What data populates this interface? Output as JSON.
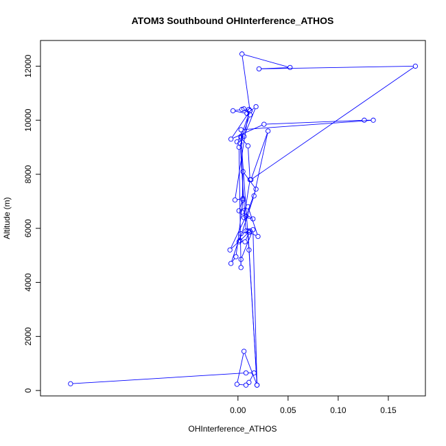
{
  "chart_data": {
    "type": "line",
    "title": "ATOM3 Southbound OHInterference_ATHOS",
    "xlabel": "OHInterference_ATHOS",
    "ylabel": "Altitude (m)",
    "xlim": [
      -0.197,
      0.187
    ],
    "ylim": [
      -200,
      12950
    ],
    "xticks": [
      0.0,
      0.05,
      0.1,
      0.15
    ],
    "xtick_labels": [
      "0.00",
      "0.05",
      "0.10",
      "0.15"
    ],
    "yticks": [
      0,
      2000,
      4000,
      6000,
      8000,
      10000,
      12000
    ],
    "ytick_labels": [
      "0",
      "2000",
      "4000",
      "6000",
      "8000",
      "10000",
      "12000"
    ],
    "grid": false,
    "line_color": "#0000ff",
    "marker": "open-circle",
    "series": [
      {
        "x": [
          -0.167,
          0.008,
          0.016,
          0.011,
          0.008,
          -0.001,
          0.006,
          0.019,
          0.011,
          0.003,
          0.01,
          0.012,
          0.006,
          0.015,
          0.004,
          0.005,
          0.018,
          0.008,
          -0.008,
          0.002,
          0.007,
          0.011,
          0.02,
          0.01,
          0.001,
          0.005,
          -0.003,
          0.011,
          0.006,
          0.012,
          0.002,
          0.008,
          0.01,
          0.019,
          0.015,
          0.003,
          0.003,
          0.001,
          0.006,
          0.018,
          0.009,
          -0.005,
          0.004,
          0.012,
          -0.007,
          0.026,
          0.126,
          0.135,
          0.003,
          0.005,
          -0.002,
          -0.007,
          0.003,
          0.012,
          0.001,
          0.016,
          0.03,
          0.013,
          0.177,
          0.021,
          0.052,
          0.004,
          0.012,
          0.003,
          -0.001
        ],
        "y": [
          250,
          650,
          650,
          300,
          200,
          230,
          1450,
          200,
          5200,
          9350,
          9050,
          7800,
          6400,
          6350,
          6600,
          8100,
          7450,
          6450,
          5200,
          5550,
          5500,
          5850,
          5700,
          6800,
          6650,
          7100,
          7050,
          10400,
          10420,
          10200,
          9150,
          5900,
          5900,
          200,
          5950,
          4850,
          4550,
          9000,
          9400,
          10500,
          10250,
          10350,
          10400,
          10350,
          9300,
          9850,
          10000,
          10000,
          9650,
          7050,
          4950,
          4700,
          5800,
          5900,
          5500,
          7200,
          9600,
          7800,
          12000,
          11900,
          11950,
          12450,
          10350,
          9400,
          9200
        ]
      }
    ]
  }
}
